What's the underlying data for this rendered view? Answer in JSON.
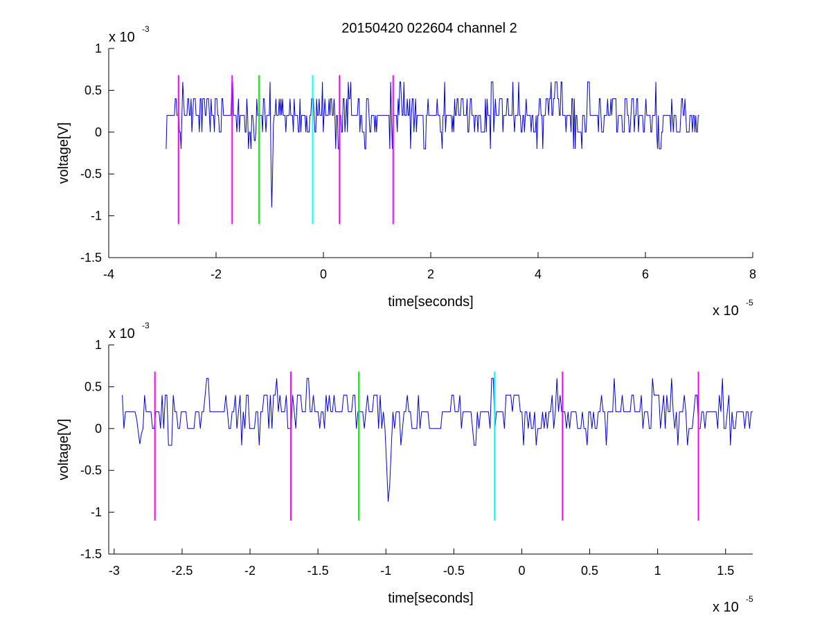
{
  "title": "20150420 022604 channel 2",
  "chart_data": [
    {
      "type": "line",
      "title": "20150420 022604 channel 2",
      "xlabel": "time[seconds]",
      "ylabel": "voltage[V]",
      "x_exponent": {
        "base": "x 10",
        "power": "-5"
      },
      "y_exponent": {
        "base": "x 10",
        "power": "-3"
      },
      "xlim": [
        -4,
        8
      ],
      "ylim": [
        -1.5,
        1
      ],
      "xticks": [
        -4,
        -2,
        0,
        2,
        4,
        6,
        8
      ],
      "xtick_labels": [
        "-4",
        "-2",
        "0",
        "2",
        "4",
        "6",
        "8"
      ],
      "yticks": [
        -1.5,
        -1,
        -0.5,
        0,
        0.5,
        1
      ],
      "ytick_labels": [
        "-1.5",
        "-1",
        "-0.5",
        "0",
        "0.5",
        "1"
      ],
      "grid": false,
      "signal": {
        "color": "#0000cc",
        "x_start": -2.93,
        "x_end": 7.0,
        "baseline_levels": [
          0,
          0.2,
          0.4
        ],
        "noise_range": [
          -0.2,
          0.6
        ],
        "spikes": [
          {
            "x": -0.96,
            "y": -1.0
          },
          {
            "x": -1.28,
            "y": -0.2
          }
        ]
      },
      "markers": [
        {
          "x": -2.7,
          "color": "#ff00ff",
          "y_top": 0.68,
          "y_bottom": -1.1
        },
        {
          "x": -1.7,
          "color": "#ff00ff",
          "y_top": 0.68,
          "y_bottom": -1.1
        },
        {
          "x": -1.2,
          "color": "#00ff00",
          "y_top": 0.68,
          "y_bottom": -1.1
        },
        {
          "x": -0.2,
          "color": "#00ffff",
          "y_top": 0.68,
          "y_bottom": -1.1
        },
        {
          "x": 0.3,
          "color": "#ff00ff",
          "y_top": 0.68,
          "y_bottom": -1.1
        },
        {
          "x": 1.3,
          "color": "#ff00ff",
          "y_top": 0.68,
          "y_bottom": -1.1
        }
      ]
    },
    {
      "type": "line",
      "title": "",
      "xlabel": "time[seconds]",
      "ylabel": "voltage[V]",
      "x_exponent": {
        "base": "x 10",
        "power": "-5"
      },
      "y_exponent": {
        "base": "x 10",
        "power": "-3"
      },
      "xlim": [
        -3.04,
        1.7
      ],
      "ylim": [
        -1.5,
        1
      ],
      "xticks": [
        -3,
        -2.5,
        -2,
        -1.5,
        -1,
        -0.5,
        0,
        0.5,
        1,
        1.5
      ],
      "xtick_labels": [
        "-3",
        "-2.5",
        "-2",
        "-1.5",
        "-1",
        "-0.5",
        "0",
        "0.5",
        "1",
        "1.5"
      ],
      "yticks": [
        -1.5,
        -1,
        -0.5,
        0,
        0.5,
        1
      ],
      "ytick_labels": [
        "-1.5",
        "-1",
        "-0.5",
        "0",
        "0.5",
        "1"
      ],
      "grid": false,
      "signal": {
        "color": "#0000cc",
        "x_start": -2.94,
        "x_end": 1.7,
        "baseline_levels": [
          0,
          0.2,
          0.4
        ],
        "noise_range": [
          -0.2,
          0.6
        ],
        "spikes": [
          {
            "x": -0.98,
            "y": -1.0
          },
          {
            "x": -2.81,
            "y": -0.2
          }
        ]
      },
      "markers": [
        {
          "x": -2.7,
          "color": "#ff00ff",
          "y_top": 0.68,
          "y_bottom": -1.1
        },
        {
          "x": -1.7,
          "color": "#ff00ff",
          "y_top": 0.68,
          "y_bottom": -1.1
        },
        {
          "x": -1.2,
          "color": "#00ff00",
          "y_top": 0.68,
          "y_bottom": -1.1
        },
        {
          "x": -0.2,
          "color": "#00ffff",
          "y_top": 0.68,
          "y_bottom": -1.1
        },
        {
          "x": 0.3,
          "color": "#ff00ff",
          "y_top": 0.68,
          "y_bottom": -1.1
        },
        {
          "x": 1.3,
          "color": "#ff00ff",
          "y_top": 0.68,
          "y_bottom": -1.1
        }
      ]
    }
  ]
}
